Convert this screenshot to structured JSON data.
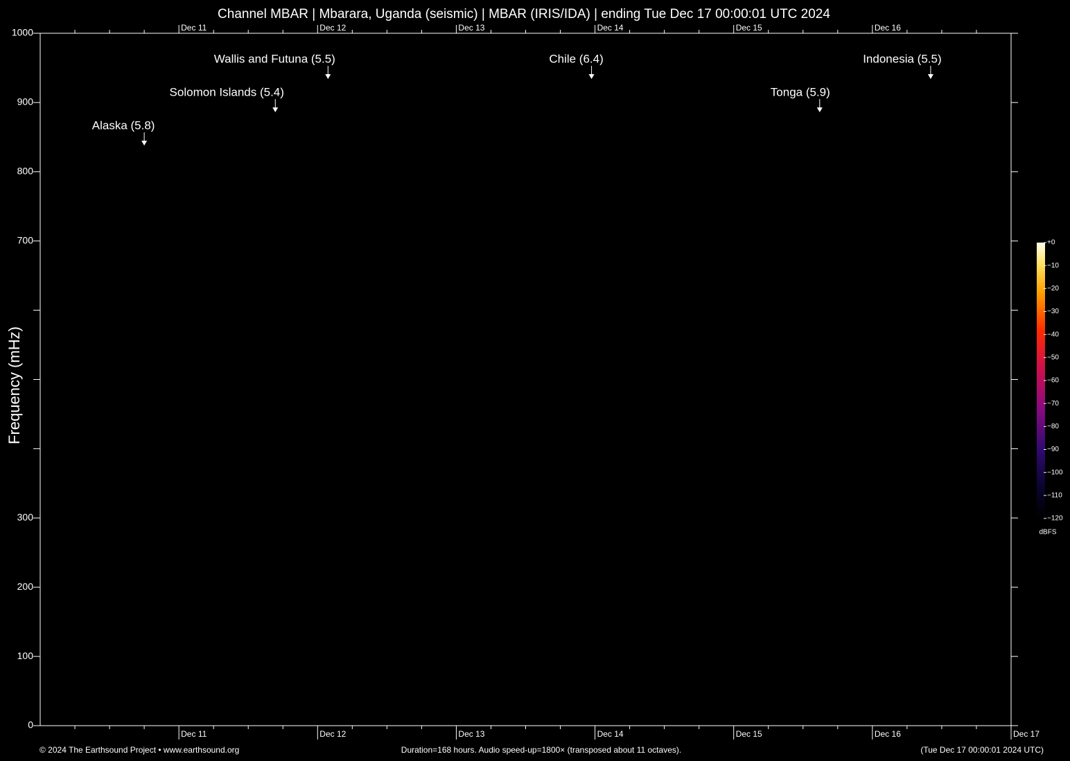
{
  "chart_data": {
    "type": "spectrogram",
    "title": "Channel MBAR | Mbarara, Uganda (seismic) | MBAR (IRIS/IDA) | ending Tue Dec 17 00:00:01 UTC 2024",
    "ylabel": "Frequency (mHz)",
    "ylim": [
      0,
      1000
    ],
    "yticks": [
      0,
      100,
      200,
      300,
      {
        "value": 400,
        "label": null
      },
      {
        "value": 500,
        "label": null
      },
      {
        "value": 600,
        "label": null
      },
      700,
      800,
      900,
      1000
    ],
    "xlim": [
      10,
      17
    ],
    "xticks": [
      {
        "value": 11,
        "label": "Dec 11"
      },
      {
        "value": 12,
        "label": "Dec 12"
      },
      {
        "value": 13,
        "label": "Dec 13"
      },
      {
        "value": 14,
        "label": "Dec 14"
      },
      {
        "value": 15,
        "label": "Dec 15"
      },
      {
        "value": 16,
        "label": "Dec 16"
      },
      {
        "value": 17,
        "label": "Dec 17"
      }
    ],
    "xminorticks": [
      10.25,
      10.5,
      10.75,
      11.25,
      11.5,
      11.75,
      12.25,
      12.5,
      12.75,
      13.25,
      13.5,
      13.75,
      14.25,
      14.5,
      14.75,
      15.25,
      15.5,
      15.75,
      16.25,
      16.5,
      16.75
    ],
    "events": [
      {
        "label": "Alaska (5.8)",
        "x": 10.75
      },
      {
        "label": "Solomon Islands (5.4)",
        "x": 11.695
      },
      {
        "label": "Wallis and Futuna (5.5)",
        "x": 12.075
      },
      {
        "label": "Chile (6.4)",
        "x": 13.975
      },
      {
        "label": "Tonga (5.9)",
        "x": 15.62
      },
      {
        "label": "Indonesia (5.5)",
        "x": 16.42
      }
    ],
    "colorbar": {
      "label": "dBFS",
      "lim": [
        -120,
        0
      ],
      "ticks": [
        {
          "value": 0,
          "label": "+0"
        },
        {
          "value": -10,
          "label": "−10"
        },
        {
          "value": -20,
          "label": "−20"
        },
        {
          "value": -30,
          "label": "−30"
        },
        {
          "value": -40,
          "label": "−40"
        },
        {
          "value": -50,
          "label": "−50"
        },
        {
          "value": -60,
          "label": "−60"
        },
        {
          "value": -70,
          "label": "−70"
        },
        {
          "value": -80,
          "label": "−80"
        },
        {
          "value": -90,
          "label": "−90"
        },
        {
          "value": -100,
          "label": "−100"
        },
        {
          "value": -110,
          "label": "−110"
        },
        {
          "value": -120,
          "label": "−120"
        }
      ]
    },
    "footer": {
      "left": "© 2024 The Earthsound Project • www.earthsound.org",
      "center": "Duration=168 hours. Audio speed-up=1800× (transposed about 11 octaves).",
      "right": "(Tue Dec 17 00:00:01 2024 UTC)"
    }
  }
}
